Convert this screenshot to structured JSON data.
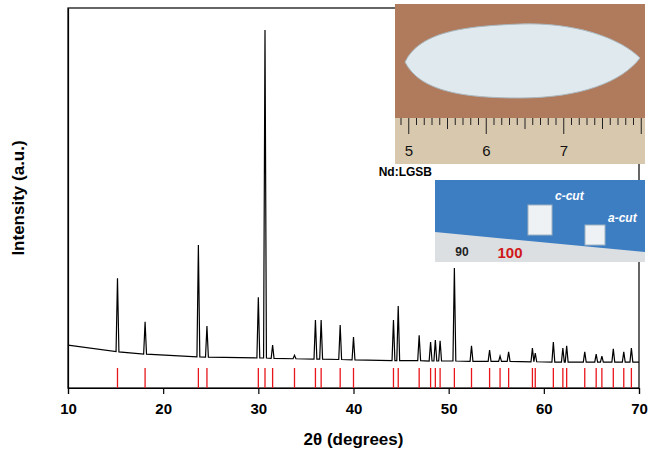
{
  "chart_data": {
    "type": "line",
    "x_label": "2θ (degrees)",
    "y_label": "Intensity (a.u.)",
    "xlim": [
      10,
      70
    ],
    "xticks": [
      10,
      20,
      30,
      40,
      50,
      60,
      70
    ],
    "ylim": [
      0,
      100
    ],
    "tick_labels": "x",
    "grid": false,
    "series": [
      {
        "type": "line",
        "color": "#000000",
        "x": [
          10,
          15.05,
          15.2,
          15.35,
          17.95,
          18.1,
          18.25,
          23.55,
          23.7,
          23.85,
          24.45,
          24.6,
          24.75,
          29.85,
          30.0,
          30.15,
          30.55,
          30.7,
          30.85,
          31.35,
          31.5,
          31.65,
          33.65,
          33.8,
          33.95,
          35.85,
          36.0,
          36.15,
          36.45,
          36.6,
          36.75,
          38.45,
          38.6,
          38.75,
          39.85,
          40.0,
          40.15,
          44.05,
          44.2,
          44.35,
          44.55,
          44.7,
          44.85,
          46.75,
          46.9,
          47.05,
          47.95,
          48.1,
          48.25,
          48.45,
          48.6,
          48.75,
          48.95,
          49.1,
          49.25,
          50.45,
          50.6,
          50.75,
          52.25,
          52.4,
          52.55,
          54.15,
          54.3,
          54.45,
          55.25,
          55.4,
          55.55,
          56.15,
          56.3,
          56.45,
          58.65,
          58.8,
          58.95,
          59.1,
          59.25,
          60.85,
          61.0,
          61.15,
          61.85,
          62.0,
          62.15,
          62.25,
          62.4,
          62.55,
          64.15,
          64.3,
          64.45,
          65.35,
          65.5,
          65.65,
          65.95,
          66.1,
          66.25,
          67.15,
          67.3,
          67.45,
          68.25,
          68.4,
          68.55,
          69.05,
          69.2,
          69.35,
          70
        ],
        "values": [
          11.3,
          9.6,
          28.9,
          9.5,
          8.9,
          17.4,
          8.9,
          8.2,
          37.6,
          8.2,
          8.1,
          16.3,
          8.1,
          7.9,
          23.9,
          7.9,
          7.9,
          94.2,
          7.9,
          7.8,
          11.3,
          7.8,
          7.7,
          8.6,
          7.7,
          7.6,
          17.9,
          7.6,
          7.6,
          17.9,
          7.6,
          7.5,
          16.6,
          7.5,
          7.4,
          13.4,
          7.4,
          7.2,
          17.9,
          7.2,
          7.2,
          21.6,
          7.2,
          7.2,
          13.9,
          7.2,
          7.1,
          12.1,
          7.1,
          7.1,
          12.6,
          7.1,
          7.1,
          12.4,
          7.1,
          7.1,
          31.6,
          7.1,
          7.0,
          11.1,
          7.0,
          7.0,
          10.0,
          7.0,
          7.0,
          8.4,
          7.0,
          7.0,
          9.5,
          7.0,
          6.9,
          10.5,
          6.9,
          9.2,
          6.9,
          6.8,
          12.1,
          6.8,
          6.8,
          10.5,
          6.8,
          6.8,
          11.1,
          6.8,
          6.8,
          9.5,
          6.8,
          6.8,
          8.9,
          6.8,
          6.8,
          8.4,
          6.8,
          6.8,
          10.3,
          6.8,
          6.8,
          9.5,
          6.8,
          6.8,
          10.5,
          6.8,
          6.8
        ]
      },
      {
        "type": "stick",
        "color": "#e8161b",
        "x": [
          15.2,
          18.1,
          23.7,
          24.6,
          30.0,
          30.7,
          31.5,
          33.8,
          36.0,
          36.6,
          38.6,
          40.0,
          44.2,
          44.7,
          46.9,
          48.1,
          48.6,
          49.1,
          50.6,
          52.4,
          54.3,
          55.4,
          56.3,
          58.8,
          59.1,
          61.0,
          62.0,
          62.4,
          64.3,
          65.5,
          66.1,
          67.3,
          68.4,
          69.2
        ]
      }
    ],
    "annotations": [
      {
        "texts": [
          "5",
          "6",
          "7"
        ]
      },
      {
        "title": "Nd:LGSB",
        "texts": [
          "c-cut",
          "a-cut",
          "90",
          "100"
        ]
      }
    ]
  }
}
